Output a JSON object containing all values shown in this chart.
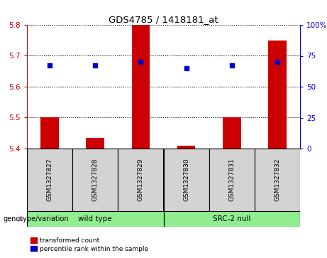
{
  "title": "GDS4785 / 1418181_at",
  "samples": [
    "GSM1327827",
    "GSM1327828",
    "GSM1327829",
    "GSM1327830",
    "GSM1327831",
    "GSM1327832"
  ],
  "transformed_counts": [
    5.5,
    5.435,
    5.8,
    5.41,
    5.5,
    5.75
  ],
  "percentile_ranks": [
    67,
    67,
    70,
    65,
    67,
    70
  ],
  "ylim_left": [
    5.4,
    5.8
  ],
  "ylim_right": [
    0,
    100
  ],
  "yticks_left": [
    5.4,
    5.5,
    5.6,
    5.7,
    5.8
  ],
  "yticks_right": [
    0,
    25,
    50,
    75,
    100
  ],
  "bar_color": "#CC0000",
  "dot_color": "#0000CC",
  "bar_width": 0.4,
  "tick_label_color_left": "#CC0000",
  "tick_label_color_right": "#0000CC",
  "legend_red_label": "transformed count",
  "legend_blue_label": "percentile rank within the sample",
  "genotype_label": "genotype/variation",
  "group_labels": [
    "wild type",
    "SRC-2 null"
  ],
  "group_colors": [
    "#90EE90",
    "#90EE90"
  ],
  "sample_bg_color": "#D3D3D3"
}
